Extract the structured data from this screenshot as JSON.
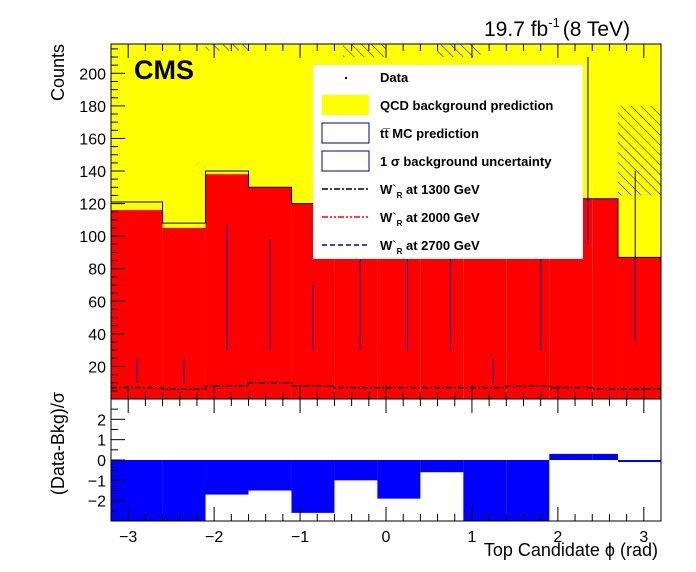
{
  "lumi_label": "19.7 fb",
  "lumi_sup": "-1",
  "energy_label": "(8 TeV)",
  "cms_label": "CMS",
  "legend": {
    "data": "Data",
    "qcd": "QCD background prediction",
    "ttbar": "tt̅ MC prediction",
    "unc": "1 σ background uncertainty",
    "wr1300_main": "W`",
    "wr1300_sub": "R",
    "wr1300_tail": " at 1300 GeV",
    "wr2000_main": "W`",
    "wr2000_sub": "R",
    "wr2000_tail": " at 2000 GeV",
    "wr2700_main": "W`",
    "wr2700_sub": "R",
    "wr2700_tail": " at 2700 GeV"
  },
  "chart_data": [
    {
      "type": "bar",
      "panel": "main",
      "ylabel": "Counts",
      "xlim": [
        -3.2,
        3.2
      ],
      "ylim": [
        0,
        218
      ],
      "bin_edges": [
        -3.2,
        -2.6,
        -2.1,
        -1.6,
        -1.1,
        -0.6,
        -0.1,
        0.4,
        0.9,
        1.4,
        1.9,
        2.4,
        2.7,
        3.2
      ],
      "yticks": [
        20,
        40,
        60,
        80,
        100,
        120,
        140,
        160,
        180,
        200
      ],
      "series": [
        {
          "name": "tt̅ MC prediction",
          "color": "#ff0000",
          "values": [
            116,
            105,
            138,
            130,
            120,
            120,
            120,
            120,
            120,
            122,
            123,
            123,
            87
          ]
        },
        {
          "name": "QCD background prediction",
          "color": "#ffff00",
          "values": [
            218,
            218,
            218,
            218,
            218,
            218,
            218,
            218,
            218,
            218,
            218,
            218,
            218
          ]
        },
        {
          "name": "1 σ background uncertainty",
          "color": "#000000",
          "hatch": [
            [
              -2.1,
              -1.6,
              214,
              218
            ],
            [
              -0.5,
              0.0,
              210,
              218
            ],
            [
              0.6,
              1.1,
              210,
              218
            ],
            [
              2.7,
              3.2,
              125,
              180
            ]
          ]
        },
        {
          "name": "W`R at 1300 GeV",
          "color": "#000000",
          "values": [
            7,
            6,
            8,
            10,
            8,
            7,
            7,
            7,
            7,
            8,
            7,
            6,
            6
          ]
        },
        {
          "name": "Data",
          "color": "#0000aa",
          "x": [
            -2.9,
            -2.35,
            -1.85,
            -1.35,
            -0.85,
            -0.3,
            0.25,
            0.75,
            1.25,
            1.8,
            2.35,
            2.9
          ],
          "y_low": [
            10,
            10,
            30,
            30,
            30,
            30,
            30,
            30,
            10,
            30,
            95,
            35
          ],
          "y_high": [
            25,
            25,
            107,
            98,
            70,
            110,
            100,
            120,
            25,
            125,
            210,
            140
          ]
        }
      ],
      "bkg_totals": [
        121,
        108,
        140,
        130,
        120,
        120,
        120,
        120,
        120,
        122,
        123,
        123,
        87
      ]
    },
    {
      "type": "bar",
      "panel": "ratio",
      "ylabel": "(Data-Bkg)/σ",
      "xlabel": "Top Candidate ϕ (rad)",
      "xlim": [
        -3.2,
        3.2
      ],
      "ylim": [
        -3,
        3
      ],
      "yticks": [
        -2,
        -1,
        0,
        1,
        2
      ],
      "xticks": [
        -3,
        -2,
        -1,
        0,
        1,
        2,
        3
      ],
      "bin_edges": [
        -3.2,
        -2.6,
        -2.1,
        -1.6,
        -1.1,
        -0.6,
        -0.1,
        0.4,
        0.9,
        1.4,
        1.9,
        2.4,
        2.7,
        3.2
      ],
      "values": [
        -3,
        -3,
        -1.7,
        -1.5,
        -2.6,
        -1.0,
        -1.9,
        -0.6,
        -3,
        -3,
        0.3,
        0.3,
        -0.1
      ],
      "color": "#0000ff"
    }
  ]
}
